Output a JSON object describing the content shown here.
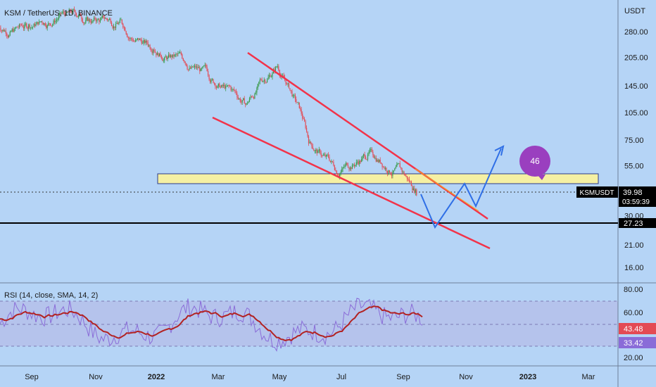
{
  "header": {
    "symbol_title": "KSM / TetherUS, 1D, BINANCE"
  },
  "price_axis": {
    "unit": "USDT",
    "ticks": [
      "280.00",
      "205.00",
      "145.00",
      "105.00",
      "75.00",
      "55.00",
      "39.98",
      "30.00",
      "27.23",
      "21.00",
      "16.00"
    ],
    "ticks_display": [
      {
        "label": "280.00",
        "value": 280
      },
      {
        "label": "205.00",
        "value": 205
      },
      {
        "label": "145.00",
        "value": 145
      },
      {
        "label": "105.00",
        "value": 105
      },
      {
        "label": "75.00",
        "value": 75
      },
      {
        "label": "55.00",
        "value": 55
      },
      {
        "label": "30.00",
        "value": 30
      },
      {
        "label": "21.00",
        "value": 21
      },
      {
        "label": "16.00",
        "value": 16
      }
    ]
  },
  "last_price": {
    "symbol_tag": "KSMUSDT",
    "value": "39.98",
    "countdown": "03:59:39"
  },
  "support_level": {
    "value": "27.23"
  },
  "annotation": {
    "bubble_number": "46"
  },
  "rsi": {
    "title": "RSI (14, close, SMA, 14, 2)",
    "axis_ticks": [
      "80.00",
      "60.00",
      "40.00",
      "20.00"
    ],
    "rsi_value": "33.42",
    "sma_value": "43.48",
    "bands": {
      "upper": 70,
      "middle": 50,
      "lower": 30
    }
  },
  "time_axis": {
    "labels": [
      "Sep",
      "Nov",
      "2022",
      "Mar",
      "May",
      "Jul",
      "Sep",
      "Nov",
      "2023",
      "Mar"
    ],
    "bold_labels": [
      "2022",
      "2023"
    ]
  },
  "colors": {
    "background": "#b5d4f6",
    "up_candle": "#3a9a4b",
    "down_candle": "#e34a54",
    "wedge_lines": "#f2334a",
    "zone_fill": "#f5f0a3",
    "projection": "#2f6fe6",
    "rsi_line": "#8a6cd8",
    "rsi_sma": "#b22222",
    "bubble": "#9a3fbf",
    "last_price_tag": "#000000",
    "rsi_tag": "#e34a54",
    "rsi_value_tag": "#8a6cd8"
  },
  "chart_data": {
    "type": "candlestick",
    "symbol": "KSMUSDT",
    "exchange": "BINANCE",
    "interval": "1D",
    "scale": "log",
    "approx_closes_by_month": [
      {
        "month": "2021-08",
        "close": 300
      },
      {
        "month": "2021-09",
        "close": 340
      },
      {
        "month": "2021-10",
        "close": 320
      },
      {
        "month": "2021-11",
        "close": 315
      },
      {
        "month": "2021-12",
        "close": 230
      },
      {
        "month": "2022-01",
        "close": 200
      },
      {
        "month": "2022-02",
        "close": 150
      },
      {
        "month": "2022-03",
        "close": 115
      },
      {
        "month": "2022-04",
        "close": 185
      },
      {
        "month": "2022-05",
        "close": 75
      },
      {
        "month": "2022-06",
        "close": 50
      },
      {
        "month": "2022-07",
        "close": 65
      },
      {
        "month": "2022-08",
        "close": 52
      },
      {
        "month": "2022-09",
        "close": 40
      }
    ],
    "last_price": 39.98,
    "support": 27.23,
    "zone": [
      47,
      53
    ]
  }
}
